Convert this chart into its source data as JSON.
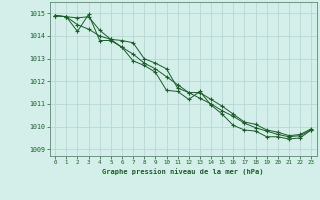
{
  "title": "Graphe pression niveau de la mer (hPa)",
  "bg_color": "#d4eeea",
  "grid_color": "#b0d4ce",
  "line_color": "#1a5c2a",
  "spine_color": "#5a8a70",
  "xlim": [
    -0.5,
    23.5
  ],
  "ylim": [
    1008.7,
    1015.5
  ],
  "yticks": [
    1009,
    1010,
    1011,
    1012,
    1013,
    1014,
    1015
  ],
  "xticks": [
    0,
    1,
    2,
    3,
    4,
    5,
    6,
    7,
    8,
    9,
    10,
    11,
    12,
    13,
    14,
    15,
    16,
    17,
    18,
    19,
    20,
    21,
    22,
    23
  ],
  "series": [
    [
      1014.9,
      1014.85,
      1014.8,
      1014.85,
      1014.25,
      1013.85,
      1013.8,
      1013.7,
      1013.0,
      1012.8,
      1012.55,
      1011.7,
      1011.5,
      1011.5,
      1011.2,
      1010.9,
      1010.55,
      1010.2,
      1010.1,
      1009.85,
      1009.75,
      1009.6,
      1009.65,
      1009.9
    ],
    [
      1014.9,
      1014.85,
      1014.5,
      1014.3,
      1014.0,
      1013.85,
      1013.5,
      1013.2,
      1012.8,
      1012.55,
      1012.2,
      1011.85,
      1011.5,
      1011.25,
      1011.0,
      1010.7,
      1010.45,
      1010.15,
      1009.95,
      1009.8,
      1009.65,
      1009.55,
      1009.6,
      1009.85
    ],
    [
      1014.9,
      1014.85,
      1014.2,
      1014.95,
      1013.8,
      1013.8,
      1013.5,
      1012.9,
      1012.7,
      1012.4,
      1011.6,
      1011.55,
      1011.2,
      1011.55,
      1010.95,
      1010.55,
      1010.05,
      1009.85,
      1009.8,
      1009.55,
      1009.55,
      1009.45,
      1009.5,
      1009.85
    ]
  ]
}
